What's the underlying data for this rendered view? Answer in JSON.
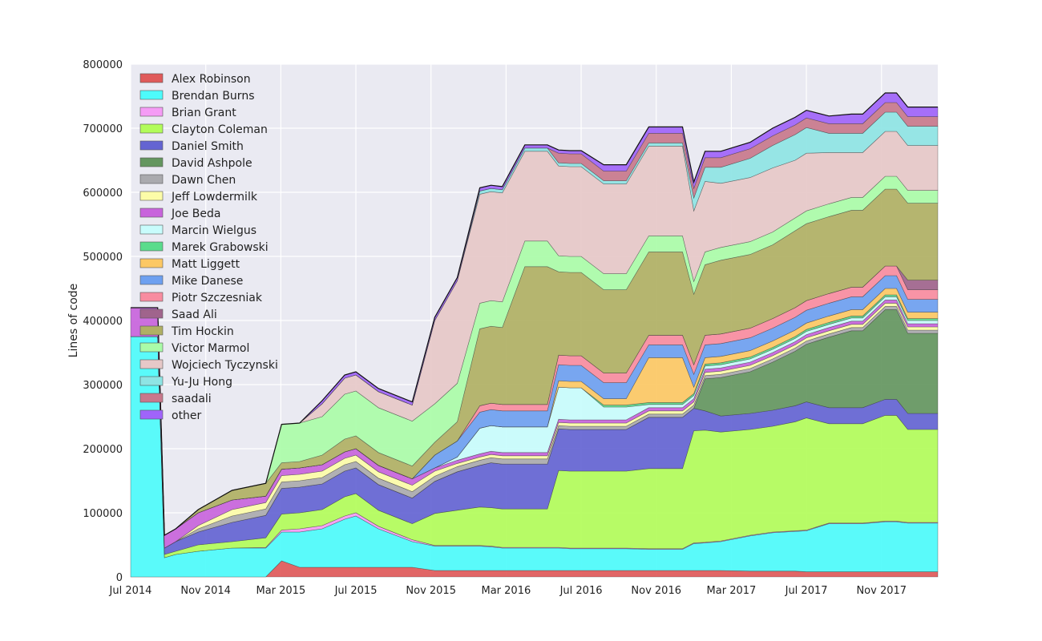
{
  "chart_data": {
    "type": "area",
    "stacked": true,
    "title": "",
    "xlabel": "",
    "ylabel": "Lines of code",
    "ylim": [
      0,
      800000
    ],
    "yticks": [
      0,
      100000,
      200000,
      300000,
      400000,
      500000,
      600000,
      700000,
      800000
    ],
    "yticklabels": [
      "0",
      "100000",
      "200000",
      "300000",
      "400000",
      "500000",
      "600000",
      "700000",
      "800000"
    ],
    "xlim": [
      2014.5,
      2018.0833
    ],
    "xticks": [
      2014.5,
      2014.8333,
      2015.1667,
      2015.5,
      2015.8333,
      2016.1667,
      2016.5,
      2016.8333,
      2017.1667,
      2017.5,
      2017.8333
    ],
    "xticklabels": [
      "Jul 2014",
      "Nov 2014",
      "Mar 2015",
      "Jul 2015",
      "Nov 2015",
      "Mar 2016",
      "Jul 2016",
      "Nov 2016",
      "Mar 2017",
      "Jul 2017",
      "Nov 2017"
    ],
    "grid": true,
    "legend_position": "top-left",
    "x": [
      2014.5,
      2014.55,
      2014.62,
      2014.65,
      2014.7,
      2014.8,
      2014.95,
      2015.1,
      2015.17,
      2015.25,
      2015.35,
      2015.45,
      2015.5,
      2015.6,
      2015.75,
      2015.85,
      2015.95,
      2016.05,
      2016.1,
      2016.15,
      2016.25,
      2016.35,
      2016.4,
      2016.45,
      2016.5,
      2016.6,
      2016.65,
      2016.7,
      2016.8,
      2016.9,
      2016.95,
      2017.0,
      2017.05,
      2017.12,
      2017.25,
      2017.35,
      2017.45,
      2017.5,
      2017.6,
      2017.7,
      2017.75,
      2017.85,
      2017.9,
      2017.95,
      2018.0,
      2018.0833
    ],
    "series": [
      {
        "name": "Alex Robinson",
        "color": "#e05a5a",
        "values": [
          0,
          0,
          0,
          0,
          0,
          0,
          0,
          0,
          25000,
          15000,
          15000,
          15000,
          15000,
          15000,
          15000,
          10000,
          10000,
          10000,
          10000,
          10000,
          10000,
          10000,
          10000,
          10000,
          10000,
          10000,
          10000,
          10000,
          10000,
          10000,
          10000,
          10000,
          10000,
          10000,
          9000,
          9000,
          9000,
          8000,
          8000,
          8000,
          8000,
          8000,
          8000,
          8000,
          8000,
          8000
        ]
      },
      {
        "name": "Brendan Burns",
        "color": "#4dfbfb",
        "values": [
          375000,
          375000,
          375000,
          30000,
          35000,
          40000,
          45000,
          45000,
          45000,
          55000,
          60000,
          75000,
          80000,
          60000,
          40000,
          38000,
          38000,
          38000,
          37000,
          35000,
          35000,
          35000,
          35000,
          34000,
          34000,
          34000,
          34000,
          34000,
          33000,
          33000,
          33000,
          42000,
          43000,
          45000,
          55000,
          60000,
          62000,
          64000,
          75000,
          75000,
          75000,
          78000,
          78000,
          76000,
          76000,
          76000
        ]
      },
      {
        "name": "Brian Grant",
        "color": "#f59cf5",
        "values": [
          0,
          0,
          0,
          0,
          0,
          0,
          0,
          1000,
          3000,
          5000,
          5000,
          5000,
          5000,
          4000,
          3000,
          1000,
          1000,
          1000,
          1000,
          1000,
          1000,
          1000,
          1000,
          1000,
          1000,
          1000,
          1000,
          1000,
          1000,
          1000,
          1000,
          1000,
          1000,
          1000,
          1000,
          1000,
          1000,
          1000,
          1000,
          1000,
          1000,
          1000,
          1000,
          1000,
          1000,
          1000
        ]
      },
      {
        "name": "Clayton Coleman",
        "color": "#b2fc5a",
        "values": [
          0,
          0,
          0,
          5000,
          5000,
          10000,
          10000,
          15000,
          25000,
          25000,
          25000,
          30000,
          30000,
          25000,
          25000,
          50000,
          55000,
          60000,
          60000,
          60000,
          60000,
          60000,
          120000,
          120000,
          120000,
          120000,
          120000,
          120000,
          125000,
          125000,
          125000,
          175000,
          175000,
          170000,
          165000,
          165000,
          170000,
          175000,
          155000,
          155000,
          155000,
          165000,
          165000,
          145000,
          145000,
          145000
        ]
      },
      {
        "name": "Daniel Smith",
        "color": "#6464d2",
        "values": [
          0,
          0,
          0,
          10000,
          15000,
          20000,
          30000,
          35000,
          40000,
          40000,
          40000,
          40000,
          40000,
          40000,
          40000,
          50000,
          60000,
          65000,
          70000,
          70000,
          70000,
          70000,
          65000,
          65000,
          65000,
          65000,
          65000,
          65000,
          80000,
          80000,
          80000,
          35000,
          30000,
          25000,
          25000,
          25000,
          25000,
          25000,
          25000,
          25000,
          25000,
          25000,
          25000,
          25000,
          25000,
          25000
        ]
      },
      {
        "name": "David Ashpole",
        "color": "#64965f",
        "values": [
          0,
          0,
          0,
          0,
          0,
          0,
          0,
          0,
          0,
          0,
          0,
          0,
          0,
          0,
          0,
          0,
          0,
          0,
          0,
          0,
          0,
          0,
          0,
          0,
          0,
          0,
          0,
          0,
          0,
          0,
          0,
          0,
          50000,
          60000,
          65000,
          75000,
          85000,
          90000,
          110000,
          120000,
          120000,
          140000,
          140000,
          125000,
          125000,
          125000
        ]
      },
      {
        "name": "Dawn Chen",
        "color": "#aaaaae",
        "values": [
          0,
          0,
          0,
          0,
          0,
          5000,
          10000,
          10000,
          10000,
          10000,
          10000,
          10000,
          10000,
          10000,
          10000,
          8000,
          8000,
          8000,
          8000,
          8000,
          8000,
          8000,
          5000,
          5000,
          5000,
          5000,
          5000,
          5000,
          5000,
          5000,
          5000,
          5000,
          5000,
          5000,
          5000,
          5000,
          5000,
          5000,
          5000,
          5000,
          5000,
          5000,
          5000,
          5000,
          5000,
          5000
        ]
      },
      {
        "name": "Jeff Lowdermilk",
        "color": "#fcfca8",
        "values": [
          0,
          0,
          0,
          0,
          0,
          5000,
          10000,
          10000,
          10000,
          10000,
          10000,
          10000,
          10000,
          10000,
          10000,
          8000,
          5000,
          5000,
          5000,
          5000,
          5000,
          5000,
          5000,
          5000,
          5000,
          5000,
          5000,
          5000,
          5000,
          5000,
          5000,
          5000,
          5000,
          5000,
          5000,
          5000,
          5000,
          5000,
          5000,
          5000,
          5000,
          5000,
          5000,
          5000,
          5000,
          5000
        ]
      },
      {
        "name": "Joe Beda",
        "color": "#c864dc",
        "values": [
          45000,
          45000,
          45000,
          20000,
          20000,
          20000,
          15000,
          10000,
          10000,
          10000,
          10000,
          10000,
          10000,
          10000,
          10000,
          5000,
          5000,
          5000,
          5000,
          5000,
          5000,
          5000,
          5000,
          5000,
          5000,
          5000,
          5000,
          5000,
          5000,
          5000,
          5000,
          5000,
          5000,
          5000,
          5000,
          5000,
          5000,
          5000,
          5000,
          5000,
          5000,
          5000,
          5000,
          5000,
          5000,
          5000
        ]
      },
      {
        "name": "Marcin Wielgus",
        "color": "#c8fcfc",
        "values": [
          0,
          0,
          0,
          0,
          0,
          0,
          0,
          0,
          0,
          0,
          0,
          0,
          0,
          0,
          0,
          0,
          5000,
          40000,
          40000,
          40000,
          40000,
          40000,
          50000,
          50000,
          50000,
          20000,
          20000,
          20000,
          5000,
          5000,
          5000,
          5000,
          5000,
          5000,
          5000,
          5000,
          5000,
          5000,
          5000,
          5000,
          5000,
          5000,
          5000,
          5000,
          5000,
          5000
        ]
      },
      {
        "name": "Marek Grabowski",
        "color": "#5adc8c",
        "values": [
          0,
          0,
          0,
          0,
          0,
          0,
          0,
          0,
          0,
          0,
          0,
          0,
          0,
          0,
          0,
          0,
          0,
          0,
          0,
          0,
          0,
          0,
          0,
          0,
          0,
          3000,
          3000,
          3000,
          3000,
          3000,
          3000,
          3000,
          3000,
          3000,
          3000,
          3000,
          3000,
          3000,
          3000,
          3000,
          3000,
          3000,
          3000,
          3000,
          3000,
          3000
        ]
      },
      {
        "name": "Matt Liggett",
        "color": "#fcc864",
        "values": [
          0,
          0,
          0,
          0,
          0,
          0,
          0,
          0,
          0,
          0,
          0,
          0,
          0,
          0,
          0,
          0,
          0,
          0,
          0,
          0,
          0,
          0,
          10000,
          10000,
          10000,
          10000,
          10000,
          10000,
          70000,
          70000,
          70000,
          10000,
          10000,
          10000,
          10000,
          10000,
          10000,
          10000,
          10000,
          10000,
          10000,
          10000,
          10000,
          10000,
          10000,
          10000
        ]
      },
      {
        "name": "Mike Danese",
        "color": "#6ea0f0",
        "values": [
          0,
          0,
          0,
          0,
          0,
          0,
          0,
          0,
          0,
          0,
          0,
          0,
          0,
          0,
          0,
          20000,
          25000,
          25000,
          25000,
          25000,
          25000,
          25000,
          25000,
          25000,
          25000,
          25000,
          25000,
          25000,
          20000,
          20000,
          20000,
          20000,
          20000,
          20000,
          20000,
          20000,
          20000,
          20000,
          20000,
          20000,
          20000,
          20000,
          20000,
          20000,
          20000,
          20000
        ]
      },
      {
        "name": "Piotr Szczesniak",
        "color": "#f88ca0",
        "values": [
          0,
          0,
          0,
          0,
          0,
          0,
          0,
          0,
          0,
          0,
          0,
          0,
          0,
          0,
          0,
          0,
          0,
          10000,
          10000,
          10000,
          10000,
          10000,
          15000,
          15000,
          15000,
          15000,
          15000,
          15000,
          15000,
          15000,
          15000,
          15000,
          15000,
          15000,
          15000,
          15000,
          15000,
          15000,
          15000,
          15000,
          15000,
          15000,
          15000,
          15000,
          15000,
          15000
        ]
      },
      {
        "name": "Saad Ali",
        "color": "#a0648c",
        "values": [
          0,
          0,
          0,
          0,
          0,
          0,
          0,
          0,
          0,
          0,
          0,
          0,
          0,
          0,
          0,
          0,
          0,
          0,
          0,
          0,
          0,
          0,
          0,
          0,
          0,
          0,
          0,
          0,
          0,
          0,
          0,
          0,
          0,
          0,
          0,
          0,
          0,
          0,
          0,
          0,
          0,
          0,
          0,
          15000,
          15000,
          15000
        ]
      },
      {
        "name": "Tim Hockin",
        "color": "#b0b064",
        "values": [
          0,
          0,
          0,
          0,
          0,
          5000,
          15000,
          20000,
          10000,
          10000,
          15000,
          20000,
          20000,
          20000,
          20000,
          20000,
          30000,
          120000,
          120000,
          120000,
          215000,
          215000,
          130000,
          130000,
          130000,
          130000,
          130000,
          130000,
          130000,
          130000,
          130000,
          110000,
          110000,
          115000,
          115000,
          115000,
          120000,
          120000,
          120000,
          120000,
          120000,
          120000,
          120000,
          120000,
          120000,
          120000
        ]
      },
      {
        "name": "Victor Marmol",
        "color": "#aafca8",
        "values": [
          0,
          0,
          0,
          0,
          0,
          0,
          0,
          0,
          60000,
          60000,
          60000,
          70000,
          70000,
          70000,
          70000,
          60000,
          60000,
          40000,
          40000,
          40000,
          40000,
          40000,
          25000,
          25000,
          25000,
          25000,
          25000,
          25000,
          25000,
          25000,
          25000,
          20000,
          20000,
          20000,
          20000,
          20000,
          20000,
          20000,
          20000,
          20000,
          20000,
          20000,
          20000,
          20000,
          20000,
          20000
        ]
      },
      {
        "name": "Wojciech Tyczynski",
        "color": "#e6c8c8",
        "values": [
          0,
          0,
          0,
          0,
          0,
          0,
          0,
          0,
          0,
          0,
          20000,
          25000,
          25000,
          25000,
          25000,
          130000,
          160000,
          170000,
          170000,
          170000,
          140000,
          140000,
          140000,
          140000,
          140000,
          140000,
          140000,
          140000,
          140000,
          140000,
          140000,
          110000,
          110000,
          100000,
          100000,
          100000,
          90000,
          90000,
          80000,
          70000,
          70000,
          70000,
          70000,
          70000,
          70000,
          70000
        ]
      },
      {
        "name": "Yu-Ju Hong",
        "color": "#8ee4e4",
        "values": [
          0,
          0,
          0,
          0,
          0,
          0,
          0,
          0,
          0,
          0,
          0,
          0,
          0,
          0,
          0,
          0,
          0,
          5000,
          5000,
          5000,
          5000,
          5000,
          5000,
          5000,
          5000,
          5000,
          5000,
          5000,
          5000,
          5000,
          5000,
          20000,
          22000,
          25000,
          30000,
          35000,
          40000,
          40000,
          30000,
          30000,
          30000,
          30000,
          30000,
          30000,
          30000,
          30000
        ]
      },
      {
        "name": "saadali",
        "color": "#c8788c",
        "values": [
          0,
          0,
          0,
          0,
          0,
          0,
          0,
          0,
          0,
          0,
          0,
          0,
          0,
          0,
          0,
          0,
          0,
          0,
          0,
          0,
          0,
          0,
          15000,
          15000,
          15000,
          15000,
          15000,
          15000,
          15000,
          15000,
          15000,
          15000,
          15000,
          15000,
          15000,
          15000,
          15000,
          15000,
          15000,
          15000,
          15000,
          15000,
          15000,
          15000,
          15000,
          15000
        ]
      },
      {
        "name": "other",
        "color": "#a064fa",
        "values": [
          0,
          0,
          0,
          0,
          0,
          0,
          0,
          0,
          0,
          0,
          5000,
          5000,
          5000,
          5000,
          5000,
          5000,
          5000,
          5000,
          5000,
          5000,
          5000,
          5000,
          5000,
          5000,
          5000,
          10000,
          10000,
          10000,
          10000,
          10000,
          10000,
          10000,
          10000,
          10000,
          10000,
          12000,
          12000,
          12000,
          12000,
          15000,
          15000,
          15000,
          15000,
          15000,
          15000,
          15000
        ]
      }
    ]
  }
}
